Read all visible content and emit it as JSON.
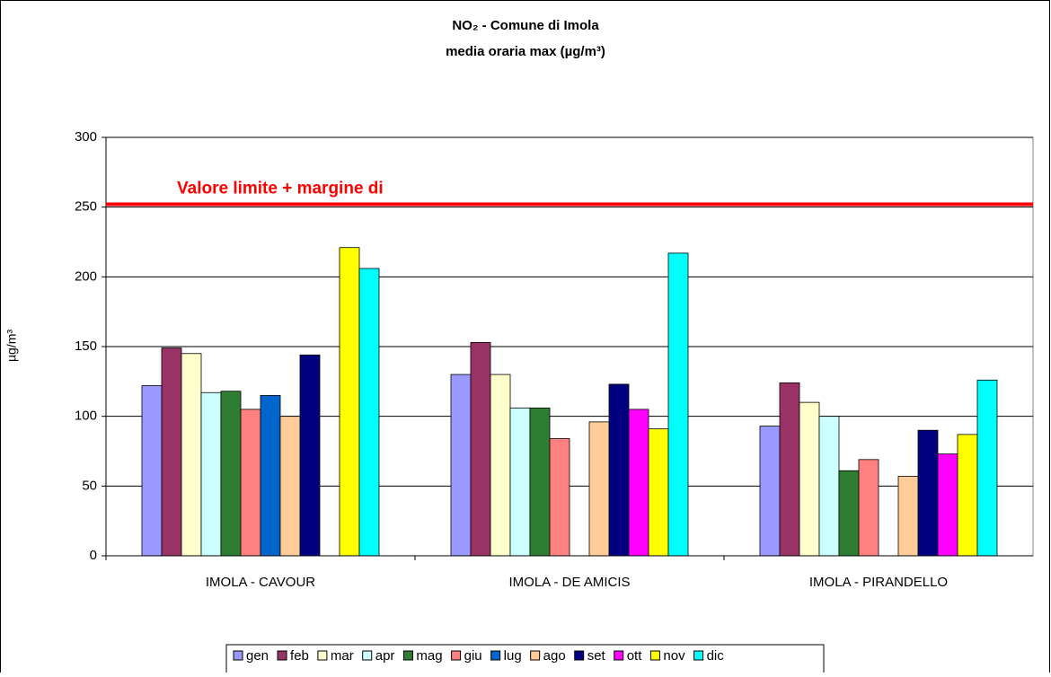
{
  "chart_data": {
    "type": "bar",
    "title": [
      "NO₂ - Comune di Imola",
      "media oraria max  (µg/m³)"
    ],
    "ylabel": "µg/m³",
    "categories": [
      "IMOLA - CAVOUR",
      "IMOLA - DE AMICIS",
      "IMOLA - PIRANDELLO"
    ],
    "series": [
      {
        "name": "gen",
        "color": "#9999ff",
        "values": [
          122,
          130,
          93
        ]
      },
      {
        "name": "feb",
        "color": "#993366",
        "values": [
          149,
          153,
          124
        ]
      },
      {
        "name": "mar",
        "color": "#ffffcc",
        "values": [
          145,
          130,
          110
        ]
      },
      {
        "name": "apr",
        "color": "#ccffff",
        "values": [
          117,
          106,
          100
        ]
      },
      {
        "name": "mag",
        "color": "#2e7d32",
        "values": [
          118,
          106,
          61
        ]
      },
      {
        "name": "giu",
        "color": "#ff8080",
        "values": [
          105,
          84,
          69
        ]
      },
      {
        "name": "lug",
        "color": "#0066cc",
        "values": [
          115,
          null,
          null
        ]
      },
      {
        "name": "ago",
        "color": "#ffcc99",
        "values": [
          100,
          96,
          57
        ]
      },
      {
        "name": "set",
        "color": "#000080",
        "values": [
          144,
          123,
          90
        ]
      },
      {
        "name": "ott",
        "color": "#ff00ff",
        "values": [
          null,
          105,
          73
        ]
      },
      {
        "name": "nov",
        "color": "#ffff00",
        "values": [
          221,
          91,
          87
        ]
      },
      {
        "name": "dic",
        "color": "#00ffff",
        "values": [
          206,
          217,
          126
        ]
      }
    ],
    "limit_line": {
      "value": 252,
      "label": "Valore limite + margine di",
      "color": "#ff0000"
    },
    "ylim": [
      0,
      300
    ],
    "yticks": [
      0,
      50,
      100,
      150,
      200,
      250,
      300
    ],
    "grid": true
  }
}
